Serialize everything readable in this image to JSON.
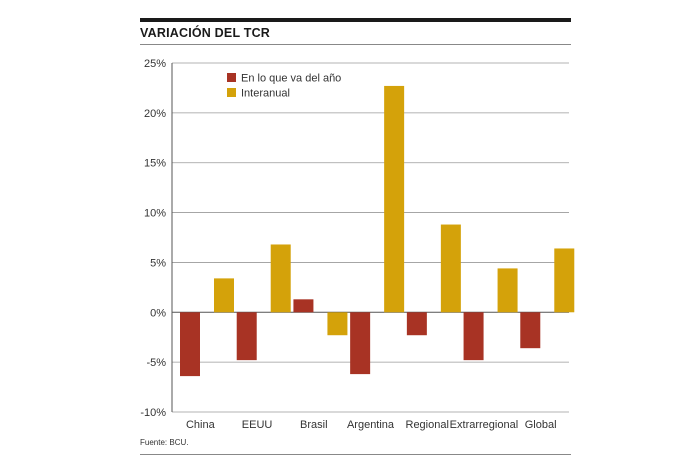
{
  "chart_data": {
    "type": "bar",
    "title": "VARIACIÓN DEL TCR",
    "source": "Fuente: BCU.",
    "categories": [
      "China",
      "EEUU",
      "Brasil",
      "Argentina",
      "Regional",
      "Extrarregional",
      "Global"
    ],
    "series": [
      {
        "name": "En lo que va del año",
        "color": "#a83324",
        "values": [
          -6.4,
          -4.8,
          1.3,
          -6.2,
          -2.3,
          -4.8,
          -3.6
        ]
      },
      {
        "name": "Interanual",
        "color": "#d4a20a",
        "values": [
          3.4,
          6.8,
          -2.3,
          22.7,
          8.8,
          4.4,
          6.4
        ]
      }
    ],
    "ylim": [
      -10,
      25
    ],
    "yticks": [
      -10,
      -5,
      0,
      5,
      10,
      15,
      20,
      25
    ],
    "ytick_labels": [
      "-10%",
      "-5%",
      "0%",
      "5%",
      "10%",
      "15%",
      "20%",
      "25%"
    ],
    "legend_position": "top-left",
    "grid": true
  }
}
